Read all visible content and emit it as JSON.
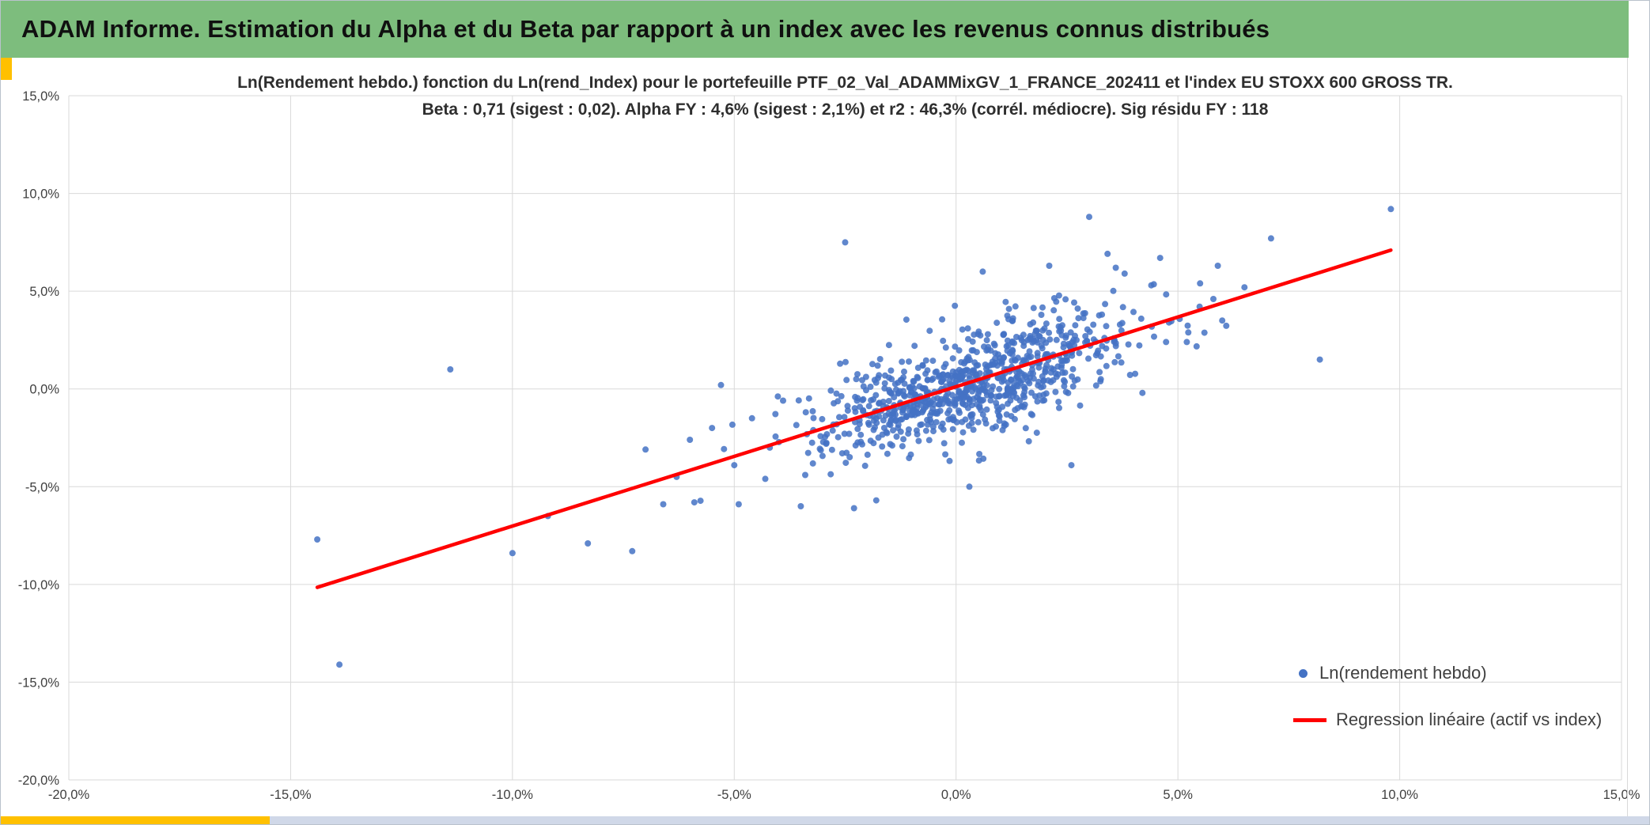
{
  "window": {
    "header_title": "ADAM Informe. Estimation du Alpha et du Beta par rapport à un index avec les revenus connus distribués",
    "header_bg": "#7DBD7D",
    "accent_color": "#FFC000",
    "bottom_strip_color": "#D0D8E8"
  },
  "chart_data": {
    "type": "scatter",
    "title_line1": "Ln(Rendement hebdo.) fonction du Ln(rend_Index) pour le portefeuille PTF_02_Val_ADAMMixGV_1_FRANCE_202411 et l'index EU STOXX 600 GROSS TR.",
    "title_line2": "Beta : 0,71 (sigest : 0,02). Alpha FY : 4,6% (sigest : 2,1%) et r2 : 46,3% (corrél. médiocre). Sig résidu FY : 118",
    "stats": {
      "beta": 0.71,
      "beta_sigest": 0.02,
      "alpha_fy_pct": 4.6,
      "alpha_sigest_pct": 2.1,
      "r2_pct": 46.3,
      "correlation_comment": "corrél. médiocre",
      "sig_residu_fy": 118
    },
    "xlim": [
      -20,
      15
    ],
    "ylim": [
      -20,
      15
    ],
    "x_tick_values": [
      -20,
      -15,
      -10,
      -5,
      0,
      5,
      10,
      15
    ],
    "x_ticks": [
      "-20,0%",
      "-15,0%",
      "-10,0%",
      "-5,0%",
      "0,0%",
      "5,0%",
      "10,0%",
      "15,0%"
    ],
    "y_tick_values": [
      15,
      10,
      5,
      0,
      -5,
      -10,
      -15,
      -20
    ],
    "y_ticks": [
      "15,0%",
      "10,0%",
      "5,0%",
      "0,0%",
      "-5,0%",
      "-10,0%",
      "-15,0%",
      "-20,0%"
    ],
    "grid_color": "#D9D9D9",
    "tick_color": "#404040",
    "series": [
      {
        "name": "Ln(rendement hebdo)",
        "type": "scatter",
        "color": "#4472C4",
        "marker": "dot"
      },
      {
        "name": "Regression linéaire (actif vs index)",
        "type": "line",
        "color": "#FF0000",
        "marker": "line"
      }
    ],
    "regression_line": {
      "x1": -14.4,
      "y1": -10.15,
      "x2": 9.8,
      "y2": 7.1,
      "color": "#FF0000"
    },
    "scatter_cloud": {
      "count": 860,
      "seed": 7,
      "x_mean": 0.35,
      "x_sd": 1.7,
      "beta": 0.71,
      "alpha_weekly_pct": 0.09,
      "resid_sd": 1.3,
      "x_range": [
        -7.6,
        6.2
      ],
      "y_range": [
        -8.2,
        9.0
      ]
    },
    "outlier_points": [
      [
        -14.4,
        -7.7
      ],
      [
        -13.9,
        -14.1
      ],
      [
        -11.4,
        1.0
      ],
      [
        -10.0,
        -8.4
      ],
      [
        -9.2,
        -6.5
      ],
      [
        -8.3,
        -7.9
      ],
      [
        -7.3,
        -8.3
      ],
      [
        -7.0,
        -3.1
      ],
      [
        -6.6,
        -5.9
      ],
      [
        -6.3,
        -4.5
      ],
      [
        -6.0,
        -2.6
      ],
      [
        -5.9,
        -5.8
      ],
      [
        -5.5,
        -2.0
      ],
      [
        -5.3,
        0.2
      ],
      [
        -5.0,
        -3.9
      ],
      [
        -4.9,
        -5.9
      ],
      [
        -4.6,
        -1.5
      ],
      [
        -4.3,
        -4.6
      ],
      [
        -4.2,
        -3.0
      ],
      [
        -3.9,
        -0.6
      ],
      [
        -3.5,
        -6.0
      ],
      [
        -3.4,
        -4.4
      ],
      [
        -2.5,
        7.5
      ],
      [
        -2.3,
        -6.1
      ],
      [
        -1.8,
        -5.7
      ],
      [
        0.3,
        -5.0
      ],
      [
        0.6,
        6.0
      ],
      [
        2.1,
        6.3
      ],
      [
        2.6,
        -3.9
      ],
      [
        3.0,
        8.8
      ],
      [
        3.6,
        6.2
      ],
      [
        3.8,
        5.9
      ],
      [
        4.2,
        -0.2
      ],
      [
        4.4,
        5.3
      ],
      [
        4.6,
        6.7
      ],
      [
        4.8,
        3.4
      ],
      [
        5.2,
        2.4
      ],
      [
        5.5,
        5.4
      ],
      [
        5.8,
        4.6
      ],
      [
        5.9,
        6.3
      ],
      [
        6.0,
        3.5
      ],
      [
        6.5,
        5.2
      ],
      [
        7.1,
        7.7
      ],
      [
        8.2,
        1.5
      ],
      [
        9.8,
        9.2
      ]
    ],
    "legend": {
      "position": "inside-bottom-right"
    }
  }
}
